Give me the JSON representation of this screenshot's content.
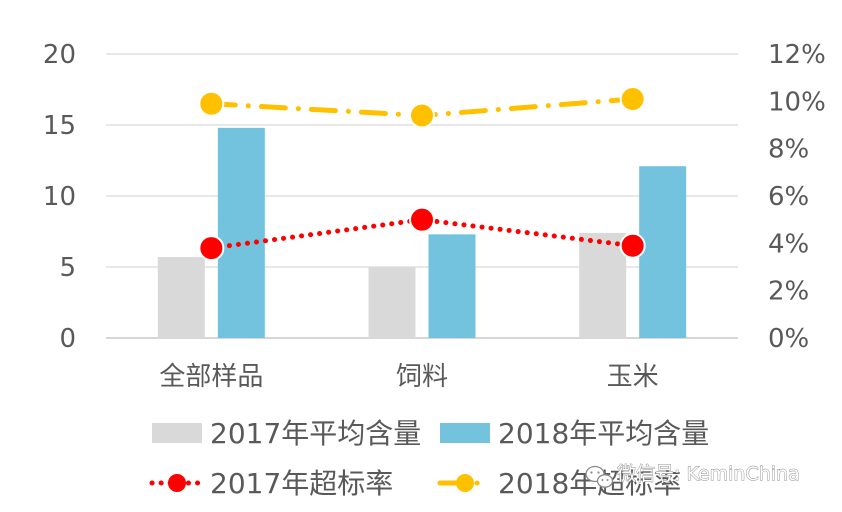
{
  "chart_data": {
    "type": "bar",
    "categories": [
      "全部样品",
      "饲料",
      "玉米"
    ],
    "left_axis": {
      "ylim": [
        0,
        20
      ],
      "ticks": [
        0,
        5,
        10,
        15,
        20
      ],
      "tick_labels": [
        "0",
        "5",
        "10",
        "15",
        "20"
      ]
    },
    "right_axis": {
      "ylim": [
        0,
        12
      ],
      "unit": "%",
      "ticks": [
        0,
        2,
        4,
        6,
        8,
        10,
        12
      ],
      "tick_labels": [
        "0%",
        "2%",
        "4%",
        "6%",
        "8%",
        "10%",
        "12%"
      ]
    },
    "series": [
      {
        "name": "2017年平均含量",
        "kind": "bar",
        "axis": "left",
        "color": "#d9d9d9",
        "values": [
          5.7,
          5.0,
          7.4
        ]
      },
      {
        "name": "2018年平均含量",
        "kind": "bar",
        "axis": "left",
        "color": "#74c3de",
        "values": [
          14.8,
          7.3,
          12.1
        ]
      },
      {
        "name": "2017年超标率",
        "kind": "line",
        "axis": "right",
        "color": "#ff0000",
        "line_style": "dotted",
        "values": [
          3.8,
          5.0,
          3.9
        ]
      },
      {
        "name": "2018年超标率",
        "kind": "line",
        "axis": "right",
        "color": "#ffc000",
        "line_style": "dash-dot",
        "values": [
          9.9,
          9.4,
          10.1
        ]
      }
    ],
    "gridlines": true,
    "legend_position": "bottom"
  },
  "watermark": {
    "icon": "wechat-icon",
    "text": "微信号: KeminChina"
  }
}
